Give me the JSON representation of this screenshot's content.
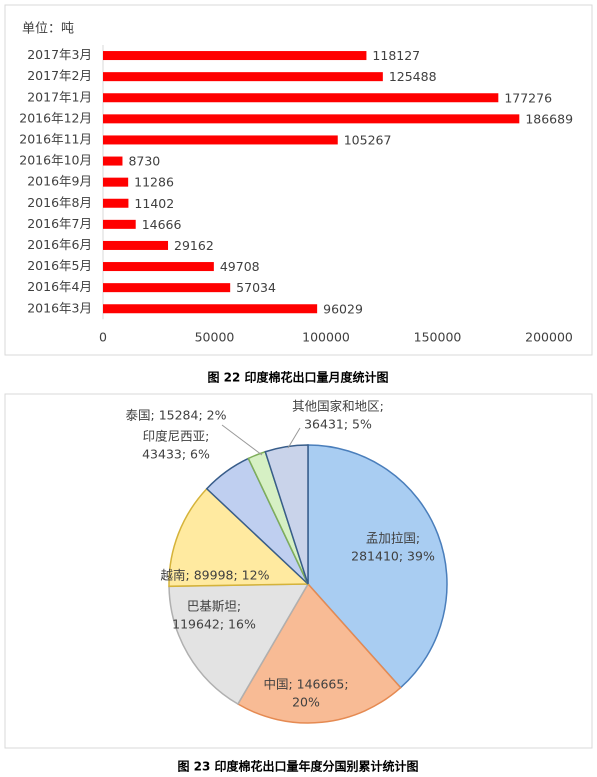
{
  "chart_data": [
    {
      "type": "bar",
      "annotation": "单位：吨",
      "caption": "图 22 印度棉花出口量月度统计图",
      "categories": [
        "2017年3月",
        "2017年2月",
        "2017年1月",
        "2016年12月",
        "2016年11月",
        "2016年10月",
        "2016年9月",
        "2016年8月",
        "2016年7月",
        "2016年6月",
        "2016年5月",
        "2016年4月",
        "2016年3月"
      ],
      "values": [
        118127,
        125488,
        177276,
        186689,
        105267,
        8730,
        11286,
        11402,
        14666,
        29162,
        49708,
        57034,
        96029
      ],
      "color": "#ff0000",
      "xlim": [
        0,
        200000
      ],
      "xticks": [
        0,
        50000,
        100000,
        150000,
        200000
      ]
    },
    {
      "type": "pie",
      "caption": "图 23 印度棉花出口量年度分国别累计统计图",
      "values": [
        281410,
        146665,
        119642,
        89998,
        43433,
        15284,
        36431
      ],
      "value_labels": [
        [
          "孟加拉国;",
          "281410; 39%"
        ],
        [
          "中国; 146665;",
          "20%"
        ],
        [
          "巴基斯坦;",
          "119642; 16%"
        ],
        [
          "越南; 89998; 12%"
        ],
        [
          "印度尼西亚;",
          "43433; 6%"
        ],
        [
          "泰国; 15284; 2%"
        ],
        [
          "其他国家和地区;",
          "36431; 5%"
        ]
      ],
      "colors": [
        "#a9cdf2",
        "#f8bb95",
        "#e3e3e3",
        "#ffeaa0",
        "#bfcff0",
        "#d6f0c4",
        "#c9d3ea"
      ]
    }
  ]
}
